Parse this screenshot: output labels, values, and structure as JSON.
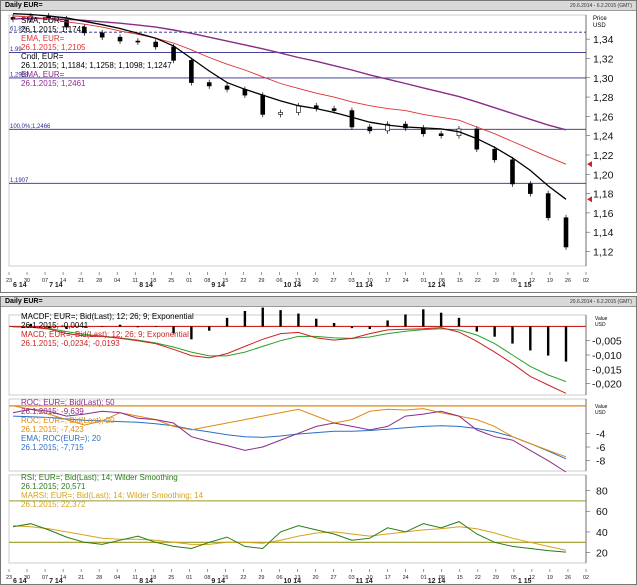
{
  "top": {
    "title": "Daily EUR=",
    "range": "20.6.2014 - 6.2.2015 (GMT)",
    "price_header": "Price",
    "price_unit": "USD",
    "legend": [
      {
        "line1": "SMA, EUR=",
        "line2": "26.1.2015; 1,1741",
        "color": "#000000"
      },
      {
        "line1": "EMA, EUR=",
        "line2": "26.1.2015; 1,2105",
        "color": "#e03030"
      },
      {
        "line1": "Cndl, EUR=",
        "line2": "26.1.2015; 1,1184; 1,1258; 1,1098; 1,1247",
        "color": "#000000"
      },
      {
        "line1": "EMA, EUR=",
        "line2": "26.1.2015; 1,2461",
        "color": "#8a2b8a"
      }
    ],
    "hlines": [
      {
        "label": "61.8%",
        "value": 1.3472,
        "color": "#2a2a8a",
        "dash": true
      },
      {
        "label": "1.99",
        "value": 1.3262,
        "color": "#2a2a8a",
        "dash": false
      },
      {
        "label": "1,2998",
        "value": 1.2998,
        "color": "#2a2a8a",
        "dash": false
      },
      {
        "label": "100,0%;1,2466",
        "value": 1.2466,
        "color": "#2a2a8a",
        "dash": false
      },
      {
        "label": "1,1907",
        "value": 1.1907,
        "color": "#2a2a8a",
        "dash": false
      }
    ],
    "marker_labels": [
      "1,2105",
      "1,1741"
    ]
  },
  "mid": {
    "title": "Daily EUR=",
    "range": "20.6.2014 - 6.2.2015 (GMT)",
    "macd_header": "Value",
    "macd_unit": "USD",
    "roc_header": "Value",
    "roc_unit": "USD",
    "macd_legend": [
      {
        "line1": "MACDF; EUR=; Bid(Last); 12; 26; 9; Exponential",
        "line2": "26.1.2015; -0,0041",
        "color": "#000000"
      },
      {
        "line1": "MACD; EUR=; Bid(Last); 12; 26; 9; Exponential",
        "line2": "26.1.2015; -0,0234; -0,0193",
        "color": "#cc2222"
      }
    ],
    "roc_legend": [
      {
        "line1": "ROC; EUR=; Bid(Last); 50",
        "line2": "26.1.2015; -9,639",
        "color": "#8a2b8a"
      },
      {
        "line1": "ROC; EUR=; Bid(Last); 20",
        "line2": "26.1.2015; -7,423",
        "color": "#e08a10"
      },
      {
        "line1": "EMA; ROC(EUR=); 20",
        "line2": "26.1.2015; -7,715",
        "color": "#2a6ec8"
      }
    ],
    "rsi_legend": [
      {
        "line1": "RSI; EUR=; Bid(Last); 14; Wilder Smoothing",
        "line2": "26.1.2015; 20,571",
        "color": "#2a7a1a"
      },
      {
        "line1": "MARSI; EUR=; Bid(Last); 14; Wilder Smoothing; 14",
        "line2": "26.1.2015; 22,372",
        "color": "#d6a21a"
      }
    ],
    "macd_marker": "-0,02",
    "roc_marker": "-7,7"
  },
  "x_axis": {
    "day_ticks": [
      "23",
      "30",
      "07",
      "14",
      "21",
      "28",
      "04",
      "11",
      "18",
      "25",
      "01",
      "08",
      "15",
      "22",
      "29",
      "06",
      "13",
      "20",
      "27",
      "03",
      "10",
      "17",
      "24",
      "01",
      "08",
      "15",
      "22",
      "29",
      "05",
      "12",
      "19",
      "26",
      "02"
    ],
    "months": [
      {
        "label": "6 14",
        "day": 0
      },
      {
        "label": "7 14",
        "day": 2
      },
      {
        "label": "8 14",
        "day": 7
      },
      {
        "label": "9 14",
        "day": 11
      },
      {
        "label": "10 14",
        "day": 15
      },
      {
        "label": "11 14",
        "day": 19
      },
      {
        "label": "12 14",
        "day": 23
      },
      {
        "label": "1 15",
        "day": 28
      }
    ]
  },
  "chart_data": [
    {
      "type": "line",
      "title": "Daily EUR=",
      "ylabel": "Price USD",
      "ylim": [
        1.105,
        1.365
      ],
      "yticks": [
        1.12,
        1.14,
        1.16,
        1.18,
        1.2,
        1.22,
        1.24,
        1.26,
        1.28,
        1.3,
        1.32,
        1.34
      ],
      "x": [
        "23.6",
        "30.6",
        "7.7",
        "14.7",
        "21.7",
        "28.7",
        "4.8",
        "11.8",
        "18.8",
        "25.8",
        "1.9",
        "8.9",
        "15.9",
        "22.9",
        "29.9",
        "6.10",
        "13.10",
        "20.10",
        "27.10",
        "3.11",
        "10.11",
        "17.11",
        "24.11",
        "1.12",
        "8.12",
        "15.12",
        "22.12",
        "29.12",
        "5.1",
        "12.1",
        "19.1",
        "26.1"
      ],
      "series": [
        {
          "name": "Cndl, EUR=",
          "values": [
            1.3605,
            1.364,
            1.361,
            1.3525,
            1.3465,
            1.342,
            1.338,
            1.337,
            1.332,
            1.318,
            1.295,
            1.2915,
            1.288,
            1.282,
            1.262,
            1.264,
            1.271,
            1.268,
            1.266,
            1.249,
            1.245,
            1.252,
            1.248,
            1.242,
            1.24,
            1.247,
            1.226,
            1.215,
            1.19,
            1.18,
            1.155,
            1.1247
          ]
        },
        {
          "name": "SMA, EUR=",
          "values": [
            1.3665,
            1.3655,
            1.364,
            1.362,
            1.3585,
            1.355,
            1.351,
            1.346,
            1.341,
            1.333,
            1.32,
            1.307,
            1.295,
            1.288,
            1.282,
            1.276,
            1.271,
            1.268,
            1.264,
            1.259,
            1.254,
            1.251,
            1.249,
            1.248,
            1.247,
            1.244,
            1.237,
            1.228,
            1.217,
            1.204,
            1.188,
            1.1741
          ]
        },
        {
          "name": "EMA, EUR=",
          "values": [
            1.364,
            1.363,
            1.361,
            1.358,
            1.3555,
            1.3525,
            1.3485,
            1.345,
            1.341,
            1.336,
            1.329,
            1.321,
            1.314,
            1.308,
            1.301,
            1.294,
            1.289,
            1.284,
            1.28,
            1.275,
            1.271,
            1.268,
            1.266,
            1.262,
            1.259,
            1.256,
            1.249,
            1.242,
            1.234,
            1.226,
            1.218,
            1.2105
          ]
        },
        {
          "name": "EMA, EUR=",
          "values": [
            1.361,
            1.3615,
            1.3612,
            1.3605,
            1.3595,
            1.358,
            1.3565,
            1.3545,
            1.3525,
            1.3495,
            1.346,
            1.342,
            1.338,
            1.334,
            1.33,
            1.3255,
            1.321,
            1.317,
            1.3125,
            1.308,
            1.303,
            1.2985,
            1.294,
            1.2895,
            1.285,
            1.2805,
            1.275,
            1.269,
            1.263,
            1.257,
            1.251,
            1.2461
          ]
        }
      ]
    },
    {
      "type": "line",
      "ylabel": "Value USD",
      "ylim": [
        -0.024,
        0.004
      ],
      "yticks": [
        -0.005,
        -0.01,
        -0.015,
        -0.02
      ],
      "x": [
        "23.6",
        "30.6",
        "7.7",
        "14.7",
        "21.7",
        "28.7",
        "4.8",
        "11.8",
        "18.8",
        "25.8",
        "1.9",
        "8.9",
        "15.9",
        "22.9",
        "29.9",
        "6.10",
        "13.10",
        "20.10",
        "27.10",
        "3.11",
        "10.11",
        "17.11",
        "24.11",
        "1.12",
        "8.12",
        "15.12",
        "22.12",
        "29.12",
        "5.1",
        "12.1",
        "19.1",
        "26.1"
      ],
      "series": [
        {
          "name": "MACDF; EUR=; Bid(Last); 12; 26; 9; Exponential",
          "values": [
            0.0,
            0.0003,
            -0.0002,
            -0.0003,
            -0.0001,
            0.0,
            0.0002,
            -0.0001,
            0.0,
            -0.0008,
            -0.0015,
            -0.0005,
            0.001,
            0.0018,
            0.0022,
            0.0019,
            0.0015,
            0.0009,
            0.0004,
            -0.0002,
            -0.0003,
            0.0007,
            0.0014,
            0.002,
            0.0016,
            0.001,
            -0.0006,
            -0.0012,
            -0.002,
            -0.0028,
            -0.0034,
            -0.0041
          ]
        },
        {
          "name": "MACD; EUR=; Bid(Last); 12; 26; 9; Exponential",
          "values": [
            -0.0001,
            -0.0003,
            -0.0009,
            -0.0025,
            -0.0033,
            -0.0035,
            -0.0042,
            -0.005,
            -0.006,
            -0.008,
            -0.0102,
            -0.011,
            -0.0095,
            -0.007,
            -0.0045,
            -0.0025,
            -0.0021,
            -0.004,
            -0.0048,
            -0.0042,
            -0.0025,
            -0.0012,
            -0.001,
            -0.0008,
            -0.0004,
            -0.002,
            -0.0052,
            -0.009,
            -0.013,
            -0.0175,
            -0.0205,
            -0.0234
          ]
        },
        {
          "name": "MACD signal",
          "values": [
            -0.0001,
            -0.0003,
            -0.0007,
            -0.0018,
            -0.0028,
            -0.0034,
            -0.004,
            -0.0048,
            -0.0058,
            -0.0072,
            -0.009,
            -0.0103,
            -0.0103,
            -0.009,
            -0.007,
            -0.005,
            -0.0035,
            -0.0035,
            -0.004,
            -0.0042,
            -0.0037,
            -0.0025,
            -0.0017,
            -0.0011,
            -0.0008,
            -0.0012,
            -0.003,
            -0.006,
            -0.01,
            -0.014,
            -0.017,
            -0.0193
          ]
        }
      ]
    },
    {
      "type": "line",
      "ylabel": "Value USD",
      "ylim": [
        -9.5,
        1.0
      ],
      "yticks": [
        -4,
        -6,
        -8
      ],
      "x": [
        "23.6",
        "30.6",
        "7.7",
        "14.7",
        "21.7",
        "28.7",
        "4.8",
        "11.8",
        "18.8",
        "25.8",
        "1.9",
        "8.9",
        "15.9",
        "22.9",
        "29.9",
        "6.10",
        "13.10",
        "20.10",
        "27.10",
        "3.11",
        "10.11",
        "17.11",
        "24.11",
        "1.12",
        "8.12",
        "15.12",
        "22.12",
        "29.12",
        "5.1",
        "12.1",
        "19.1",
        "26.1"
      ],
      "series": [
        {
          "name": "ROC; EUR=; Bid(Last); 50",
          "values": [
            -1.0,
            -0.5,
            -0.8,
            -1.5,
            -1.2,
            -0.8,
            -1.0,
            -1.8,
            -2.0,
            -2.5,
            -4.5,
            -5.2,
            -5.8,
            -6.5,
            -6.0,
            -5.0,
            -4.0,
            -3.0,
            -2.5,
            -3.0,
            -3.5,
            -3.0,
            -1.5,
            -1.2,
            -0.8,
            -1.5,
            -3.5,
            -4.5,
            -5.0,
            -6.5,
            -8.0,
            -9.639
          ]
        },
        {
          "name": "ROC; EUR=; Bid(Last); 20",
          "values": [
            0.0,
            -0.5,
            -1.2,
            -2.0,
            -2.8,
            -2.2,
            -1.0,
            -1.5,
            -2.0,
            -3.0,
            -3.5,
            -3.0,
            -2.5,
            -2.0,
            -1.5,
            -1.0,
            -0.5,
            -1.5,
            -2.5,
            -2.0,
            -0.8,
            -0.5,
            -0.6,
            -0.4,
            -1.0,
            -1.5,
            -2.0,
            -3.0,
            -4.5,
            -5.5,
            -6.5,
            -7.423
          ]
        },
        {
          "name": "EMA; ROC(EUR=); 20",
          "values": [
            -1.5,
            -1.6,
            -1.7,
            -1.9,
            -2.1,
            -2.2,
            -2.3,
            -2.4,
            -2.6,
            -2.9,
            -3.4,
            -3.8,
            -4.2,
            -4.5,
            -4.6,
            -4.4,
            -4.1,
            -3.9,
            -3.7,
            -3.7,
            -3.6,
            -3.4,
            -3.2,
            -3.0,
            -2.9,
            -3.0,
            -3.3,
            -3.8,
            -4.5,
            -5.5,
            -6.6,
            -7.715
          ]
        }
      ]
    },
    {
      "type": "line",
      "ylabel": "Value USD",
      "ylim": [
        10,
        95
      ],
      "yticks": [
        20,
        40,
        60,
        80
      ],
      "x": [
        "23.6",
        "30.6",
        "7.7",
        "14.7",
        "21.7",
        "28.7",
        "4.8",
        "11.8",
        "18.8",
        "25.8",
        "1.9",
        "8.9",
        "15.9",
        "22.9",
        "29.9",
        "6.10",
        "13.10",
        "20.10",
        "27.10",
        "3.11",
        "10.11",
        "17.11",
        "24.11",
        "1.12",
        "8.12",
        "15.12",
        "22.12",
        "29.12",
        "5.1",
        "12.1",
        "19.1",
        "26.1"
      ],
      "series": [
        {
          "name": "RSI; EUR=; Bid(Last); 14; Wilder Smoothing",
          "values": [
            45,
            48,
            42,
            35,
            30,
            28,
            32,
            36,
            30,
            26,
            24,
            30,
            35,
            26,
            24,
            40,
            46,
            42,
            38,
            32,
            34,
            44,
            40,
            48,
            44,
            50,
            38,
            30,
            26,
            24,
            22,
            20.571
          ]
        },
        {
          "name": "MARSI; EUR=; Bid(Last); 14; Wilder Smoothing; 14",
          "values": [
            46,
            45,
            43,
            40,
            37,
            34,
            33,
            33,
            32,
            30,
            28,
            28,
            30,
            30,
            29,
            32,
            36,
            39,
            40,
            38,
            36,
            38,
            40,
            42,
            43,
            45,
            43,
            39,
            34,
            30,
            26,
            22.372
          ]
        }
      ]
    }
  ]
}
